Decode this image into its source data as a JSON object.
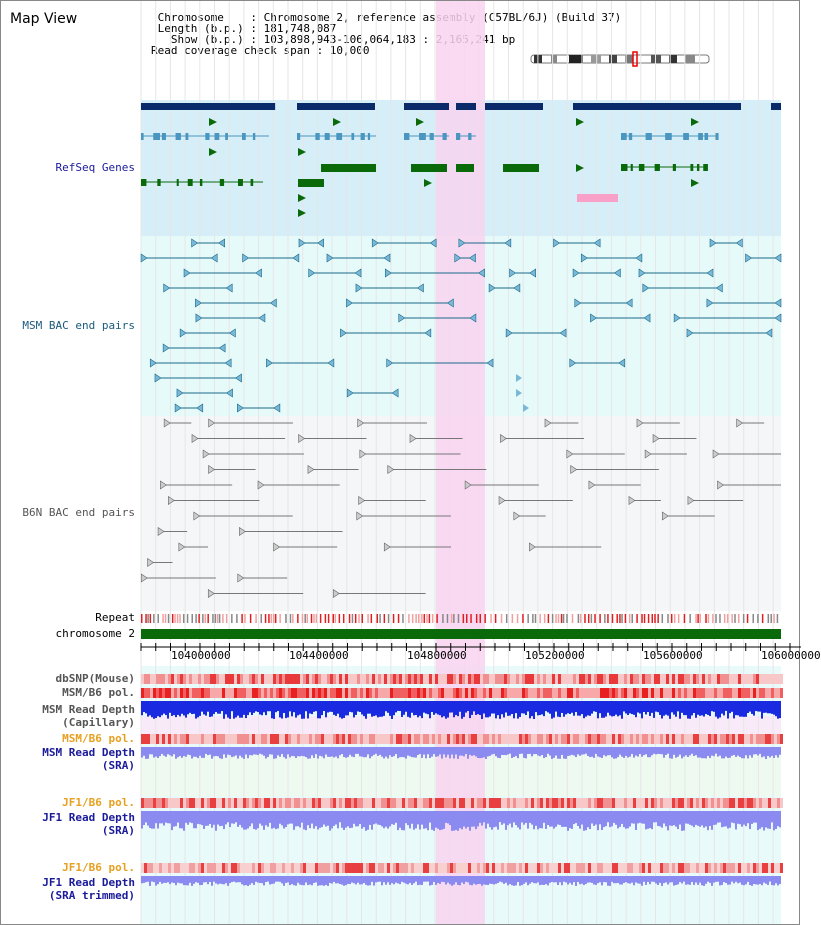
{
  "header": {
    "title": "Map View",
    "info": [
      " Chromosome    : Chromosome 2, reference assembly (C57BL/6J) (Build 37)",
      " Length (b.p.) : 181,748,087",
      "   Show (b.p.) : 103,898,943-106,064,183 : 2,165,241 bp",
      "Read coverage check span : 10,000"
    ]
  },
  "tracks": {
    "refseq": "RefSeq Genes",
    "msm_bac": "MSM BAC end pairs",
    "b6n_bac": "B6N BAC end pairs",
    "repeat": "Repeat",
    "chromosome": "chromosome 2",
    "dbsnp": "dbSNP(Mouse)",
    "msm_b6_pol_1": "MSM/B6 pol.",
    "msm_depth_cap": [
      "MSM Read Depth",
      "(Capillary)"
    ],
    "msm_b6_pol_2": "MSM/B6 pol.",
    "msm_depth_sra": [
      "MSM Read Depth",
      "(SRA)"
    ],
    "jf1_b6_pol_1": "JF1/B6 pol.",
    "jf1_depth_sra": [
      "JF1 Read Depth",
      "(SRA)"
    ],
    "jf1_b6_pol_2": "JF1/B6 pol.",
    "jf1_depth_trim": [
      "JF1 Read Depth",
      "(SRA trimmed)"
    ]
  },
  "axis": {
    "ticks": [
      "104000000",
      "104400000",
      "104800000",
      "105200000",
      "105600000",
      "106000000"
    ]
  },
  "colors": {
    "refseq_bg": "#d6eef8",
    "bac_bg": "#e6fafa",
    "b6n_bg": "#f4f6f8",
    "highlight": "#f8d4f0",
    "gene_dark": "#0a2a6a",
    "gene_mid": "#4a96c0",
    "gene_green": "#0a6a0a",
    "chromosome": "#0a6a0a",
    "bac_msm": "#1a6a8a",
    "bac_b6n": "#777777",
    "depth_cap": "#1a2ae0",
    "depth_sra": "#8a8af0",
    "pol_label": "#e8a020",
    "depth_label": "#1a1a9a"
  }
}
